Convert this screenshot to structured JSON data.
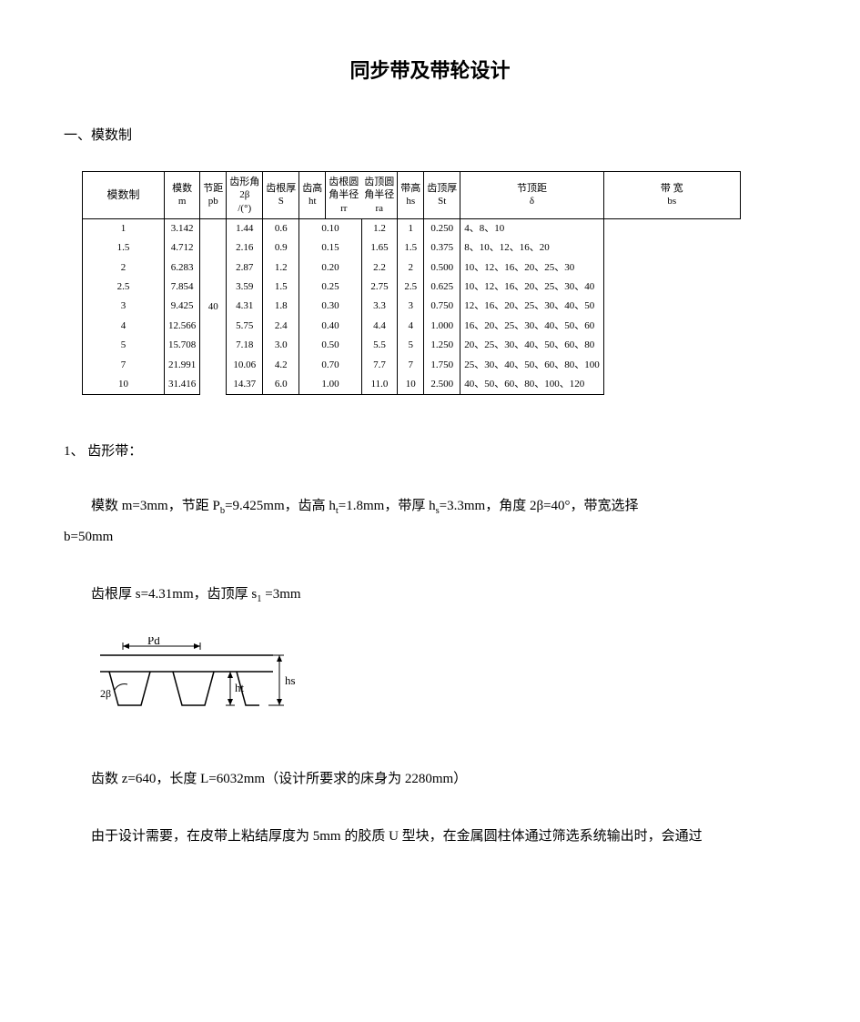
{
  "title": "同步带及带轮设计",
  "section1_header": "一、模数制",
  "table": {
    "row_label": "模数制",
    "headers": {
      "c0_l1": "模数",
      "c0_l2": "m",
      "c1_l1": "节距",
      "c1_l2": "pb",
      "c2_l1": "齿形角",
      "c2_l2": "2β",
      "c2_l3": "/(°)",
      "c3_l1": "齿根厚",
      "c3_l2": "S",
      "c4_l1": "齿高",
      "c4_l2": "ht",
      "c5_l1": "齿根圆",
      "c5_l2": "角半径",
      "c5_l3": "rr",
      "c6_l1": "齿顶圆",
      "c6_l2": "角半径",
      "c6_l3": "ra",
      "c7_l1": "带高",
      "c7_l2": "hs",
      "c8_l1": "齿顶厚",
      "c8_l2": "St",
      "c9_l1": "节顶距",
      "c9_l2": "δ",
      "c10_l1": "带     宽",
      "c10_l2": "bs"
    },
    "beta_value": "40",
    "rows": [
      {
        "m": "1",
        "pb": "3.142",
        "s": "1.44",
        "ht": "0.6",
        "rr_ra": "0.10",
        "hs": "1.2",
        "st": "1",
        "delta": "0.250",
        "bs": "4、8、10"
      },
      {
        "m": "1.5",
        "pb": "4.712",
        "s": "2.16",
        "ht": "0.9",
        "rr_ra": "0.15",
        "hs": "1.65",
        "st": "1.5",
        "delta": "0.375",
        "bs": "8、10、12、16、20"
      },
      {
        "m": "2",
        "pb": "6.283",
        "s": "2.87",
        "ht": "1.2",
        "rr_ra": "0.20",
        "hs": "2.2",
        "st": "2",
        "delta": "0.500",
        "bs": "10、12、16、20、25、30"
      },
      {
        "m": "2.5",
        "pb": "7.854",
        "s": "3.59",
        "ht": "1.5",
        "rr_ra": "0.25",
        "hs": "2.75",
        "st": "2.5",
        "delta": "0.625",
        "bs": "10、12、16、20、25、30、40"
      },
      {
        "m": "3",
        "pb": "9.425",
        "s": "4.31",
        "ht": "1.8",
        "rr_ra": "0.30",
        "hs": "3.3",
        "st": "3",
        "delta": "0.750",
        "bs": "12、16、20、25、30、40、50"
      },
      {
        "m": "4",
        "pb": "12.566",
        "s": "5.75",
        "ht": "2.4",
        "rr_ra": "0.40",
        "hs": "4.4",
        "st": "4",
        "delta": "1.000",
        "bs": "16、20、25、30、40、50、60"
      },
      {
        "m": "5",
        "pb": "15.708",
        "s": "7.18",
        "ht": "3.0",
        "rr_ra": "0.50",
        "hs": "5.5",
        "st": "5",
        "delta": "1.250",
        "bs": "20、25、30、40、50、60、80"
      },
      {
        "m": "7",
        "pb": "21.991",
        "s": "10.06",
        "ht": "4.2",
        "rr_ra": "0.70",
        "hs": "7.7",
        "st": "7",
        "delta": "1.750",
        "bs": "25、30、40、50、60、80、100"
      },
      {
        "m": "10",
        "pb": "31.416",
        "s": "14.37",
        "ht": "6.0",
        "rr_ra": "1.00",
        "hs": "11.0",
        "st": "10",
        "delta": "2.500",
        "bs": "40、50、60、80、100、120"
      }
    ]
  },
  "sub1_header": "1、  齿形带：",
  "para1_a": "模数 m=3mm，节距 P",
  "para1_b": "=9.425mm，齿高 h",
  "para1_c": "=1.8mm，带厚 h",
  "para1_d": "=3.3mm，角度 2β=40°，带宽选择",
  "para1_line2": "b=50mm",
  "para2_a": "齿根厚 s=4.31mm，齿顶厚 s",
  "para2_b": " =3mm",
  "diagram_labels": {
    "pd": "Pd",
    "beta": "2β",
    "ht": "ht",
    "hs": "hs"
  },
  "para3": "齿数 z=640，长度 L=6032mm（设计所要求的床身为 2280mm）",
  "para4": "由于设计需要，在皮带上粘结厚度为 5mm 的胶质 U 型块，在金属圆柱体通过筛选系统输出时，会通过"
}
